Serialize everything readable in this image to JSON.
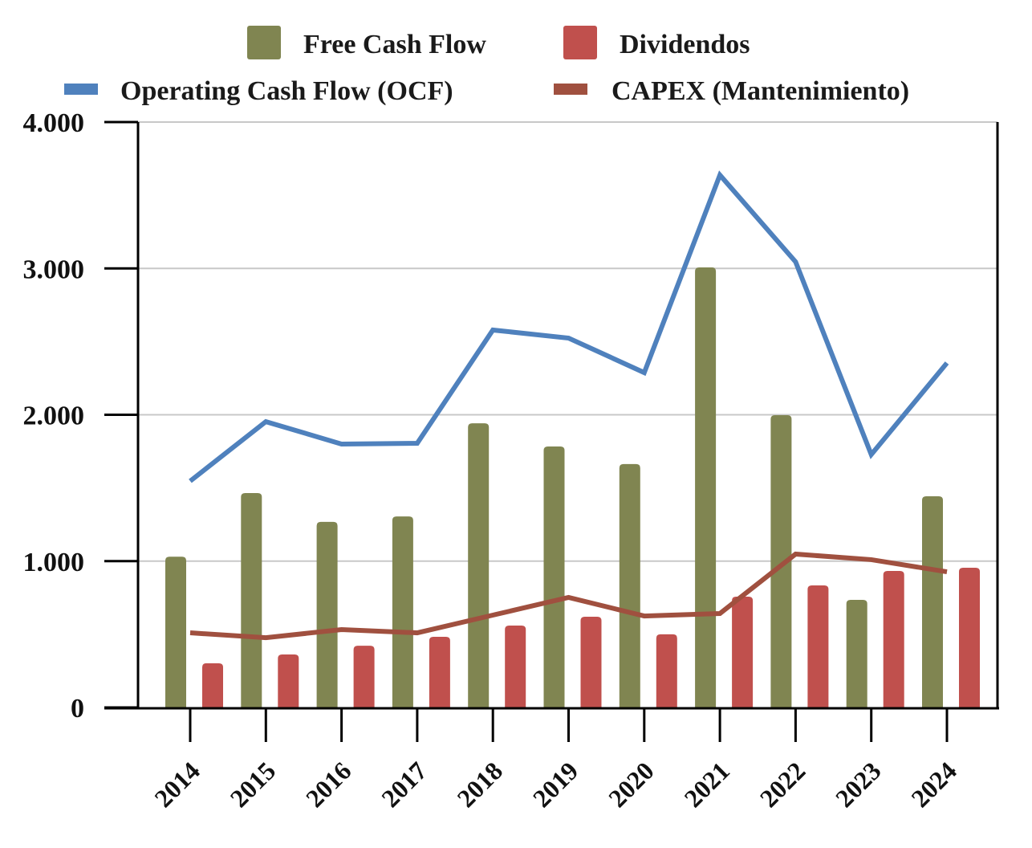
{
  "chart_data": {
    "type": "bar",
    "title": "",
    "xlabel": "",
    "ylabel": "",
    "ylim": [
      0,
      4000
    ],
    "grid": true,
    "legend_position": "top",
    "categories": [
      "2014",
      "2015",
      "2016",
      "2017",
      "2018",
      "2019",
      "2020",
      "2021",
      "2022",
      "2023",
      "2024"
    ],
    "yticks": [
      0,
      1000,
      2000,
      3000,
      4000
    ],
    "ytick_labels": [
      "0",
      "1.000",
      "2.000",
      "3.000",
      "4.000"
    ],
    "series": [
      {
        "name": "Free Cash Flow",
        "type": "bar",
        "color": "#808551",
        "values": [
          1030,
          1465,
          1268,
          1305,
          1942,
          1783,
          1663,
          3007,
          1997,
          735,
          1443
        ]
      },
      {
        "name": "Dividendos",
        "type": "bar",
        "color": "#C0504D",
        "values": [
          302,
          362,
          422,
          483,
          560,
          620,
          500,
          757,
          834,
          933,
          955
        ]
      },
      {
        "name": "Operating Cash Flow (OCF)",
        "type": "line",
        "color": "#4F81BD",
        "values": [
          1547,
          1953,
          1800,
          1805,
          2579,
          2524,
          2288,
          3638,
          3045,
          1728,
          2354
        ]
      },
      {
        "name": "CAPEX (Mantenimiento)",
        "type": "line",
        "color": "#A0503F",
        "values": [
          510,
          477,
          532,
          510,
          631,
          752,
          625,
          642,
          1048,
          1010,
          927
        ]
      }
    ]
  }
}
